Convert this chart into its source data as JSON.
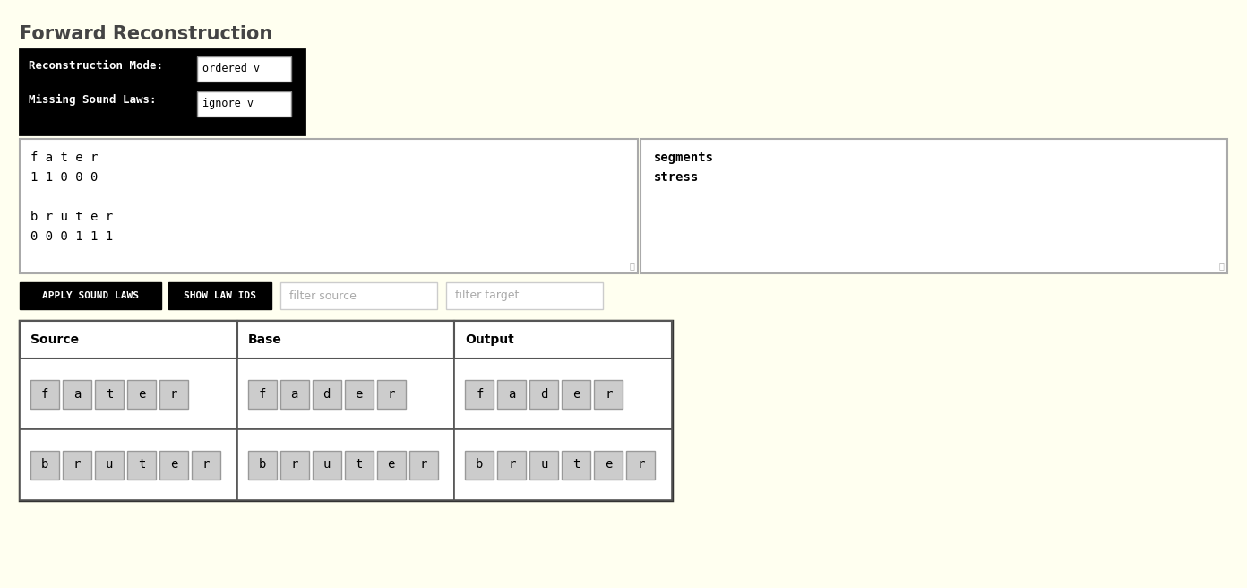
{
  "bg_color": "#fffff0",
  "title": "Forward Reconstruction",
  "title_fontsize": 15,
  "title_color": "#444444",
  "title_weight": "bold",
  "label1": "Reconstruction Mode:",
  "dropdown1": "ordered v",
  "label2": "Missing Sound Laws:",
  "dropdown2": "ignore v",
  "textarea_text_line1": "f a t e r",
  "textarea_text_line2": "1 1 0 0 0",
  "textarea_text_line3": "",
  "textarea_text_line4": "b r u t e r",
  "textarea_text_line5": "0 0 0 1 1 1",
  "sidebar_line1": "segments",
  "sidebar_line2": "stress",
  "btn1_text": "APPLY SOUND LAWS",
  "btn2_text": "SHOW LAW IDS",
  "filter1_text": "filter source",
  "filter2_text": "filter target",
  "col_headers": [
    "Source",
    "Base",
    "Output"
  ],
  "row1_source": [
    "f",
    "a",
    "t",
    "e",
    "r"
  ],
  "row1_base": [
    "f",
    "a",
    "d",
    "e",
    "r"
  ],
  "row1_output": [
    "f",
    "a",
    "d",
    "e",
    "r"
  ],
  "row2_source": [
    "b",
    "r",
    "u",
    "t",
    "e",
    "r"
  ],
  "row2_base": [
    "b",
    "r",
    "u",
    "t",
    "e",
    "r"
  ],
  "row2_output": [
    "b",
    "r",
    "u",
    "t",
    "e",
    "r"
  ]
}
